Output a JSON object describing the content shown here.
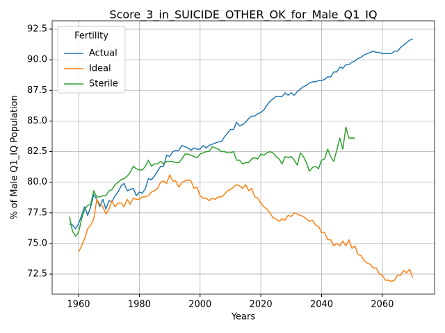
{
  "chart_data": {
    "type": "line",
    "title": "Score_3_in_SUICIDE_OTHER_OK_for_Male_Q1_IQ",
    "x_label": "Years",
    "y_label": "% of Male Q1_IQ Population",
    "x": [
      1957,
      1958,
      1959,
      1960,
      1961,
      1962,
      1963,
      1964,
      1965,
      1966,
      1967,
      1968,
      1969,
      1970,
      1971,
      1972,
      1973,
      1974,
      1975,
      1976,
      1977,
      1978,
      1979,
      1980,
      1981,
      1982,
      1983,
      1984,
      1985,
      1986,
      1987,
      1988,
      1989,
      1990,
      1991,
      1992,
      1993,
      1994,
      1995,
      1996,
      1997,
      1998,
      1999,
      2000,
      2001,
      2002,
      2003,
      2004,
      2005,
      2006,
      2007,
      2008,
      2009,
      2010,
      2011,
      2012,
      2013,
      2014,
      2015,
      2016,
      2017,
      2018,
      2019,
      2020,
      2021,
      2022,
      2023,
      2024,
      2025,
      2026,
      2027,
      2028,
      2029,
      2030,
      2031,
      2032,
      2033,
      2034,
      2035,
      2036,
      2037,
      2038,
      2039,
      2040,
      2041,
      2042,
      2043,
      2044,
      2045,
      2046,
      2047,
      2048,
      2049,
      2050,
      2051,
      2052,
      2053,
      2054,
      2055,
      2056,
      2057,
      2058,
      2059,
      2060,
      2061,
      2062,
      2063,
      2064,
      2065,
      2066,
      2067,
      2068,
      2069,
      2070
    ],
    "series": [
      {
        "name": "Actual",
        "color": "#1f77b4",
        "values": [
          76.6,
          76.5,
          76.2,
          76.6,
          77.3,
          78.0,
          77.3,
          78.0,
          79.0,
          78.6,
          78.0,
          78.6,
          77.8,
          78.5,
          78.4,
          78.9,
          79.2,
          79.7,
          79.9,
          79.3,
          79.4,
          79.5,
          78.9,
          79.2,
          79.1,
          79.5,
          80.3,
          80.2,
          80.5,
          80.9,
          81.3,
          81.3,
          82.2,
          82.1,
          82.5,
          82.6,
          82.6,
          83.0,
          82.9,
          82.8,
          82.6,
          82.8,
          82.7,
          82.7,
          83.0,
          82.8,
          83.0,
          83.1,
          83.2,
          83.3,
          83.3,
          83.7,
          84.0,
          84.3,
          84.3,
          84.9,
          84.6,
          84.7,
          84.9,
          85.2,
          85.4,
          85.4,
          85.6,
          85.7,
          85.9,
          86.3,
          86.6,
          86.8,
          87.0,
          87.0,
          87.0,
          87.3,
          87.1,
          87.3,
          87.1,
          87.4,
          87.6,
          87.8,
          87.9,
          88.1,
          88.2,
          88.2,
          88.3,
          88.3,
          88.4,
          88.6,
          88.6,
          89.0,
          89.0,
          89.4,
          89.3,
          89.6,
          89.6,
          89.8,
          89.9,
          90.1,
          90.2,
          90.4,
          90.5,
          90.6,
          90.7,
          90.6,
          90.6,
          90.5,
          90.5,
          90.5,
          90.5,
          90.7,
          90.7,
          91.0,
          91.2,
          91.4,
          91.6,
          91.7
        ]
      },
      {
        "name": "Ideal",
        "color": "#ff7f0e",
        "values": [
          null,
          null,
          null,
          74.3,
          74.8,
          75.4,
          76.2,
          76.5,
          77.0,
          78.6,
          78.2,
          78.0,
          77.4,
          77.8,
          78.5,
          78.0,
          78.3,
          78.3,
          78.0,
          78.6,
          78.2,
          78.7,
          78.6,
          78.6,
          78.8,
          78.8,
          78.9,
          79.2,
          79.3,
          79.5,
          80.0,
          80.1,
          79.9,
          80.6,
          80.1,
          80.1,
          79.6,
          80.0,
          80.1,
          80.2,
          80.1,
          79.5,
          79.6,
          78.9,
          78.7,
          78.7,
          78.5,
          78.7,
          78.6,
          78.8,
          78.8,
          79.0,
          79.3,
          79.4,
          79.6,
          79.8,
          79.7,
          79.5,
          79.8,
          79.3,
          79.5,
          78.8,
          78.7,
          78.3,
          78.0,
          77.8,
          77.5,
          77.1,
          77.0,
          76.8,
          77.0,
          76.9,
          77.3,
          77.2,
          77.5,
          77.4,
          77.3,
          77.2,
          77.0,
          76.8,
          76.9,
          76.5,
          76.4,
          75.9,
          75.9,
          75.3,
          75.3,
          74.8,
          75.0,
          74.8,
          75.2,
          74.8,
          75.3,
          74.6,
          74.8,
          74.1,
          74.0,
          73.6,
          73.4,
          73.3,
          73.0,
          73.0,
          72.5,
          72.4,
          72.0,
          72.0,
          71.9,
          72.0,
          72.4,
          72.4,
          72.8,
          72.6,
          72.9,
          72.2
        ]
      },
      {
        "name": "Sterile",
        "color": "#2ca02c",
        "values": [
          77.2,
          76.0,
          75.6,
          75.9,
          77.0,
          77.8,
          78.1,
          78.2,
          79.3,
          78.8,
          78.8,
          78.9,
          78.9,
          79.3,
          79.4,
          79.8,
          80.0,
          80.2,
          80.3,
          80.5,
          80.8,
          81.3,
          81.1,
          81.0,
          81.0,
          81.3,
          81.8,
          81.3,
          81.5,
          81.5,
          81.7,
          81.5,
          81.7,
          81.7,
          81.7,
          81.6,
          81.6,
          81.9,
          82.3,
          82.3,
          82.2,
          82.1,
          82.0,
          82.3,
          82.4,
          82.5,
          82.5,
          82.9,
          82.8,
          82.7,
          82.5,
          82.5,
          82.4,
          82.4,
          82.5,
          81.8,
          81.8,
          81.5,
          81.6,
          81.6,
          81.9,
          82.0,
          81.9,
          82.3,
          82.2,
          82.4,
          82.5,
          82.4,
          82.1,
          81.9,
          81.5,
          82.1,
          82.0,
          82.1,
          81.8,
          81.4,
          82.4,
          82.1,
          81.6,
          80.9,
          81.2,
          81.3,
          81.1,
          81.8,
          81.9,
          82.7,
          82.1,
          81.7,
          82.6,
          83.6,
          82.7,
          84.5,
          83.6,
          83.6,
          83.6,
          null,
          null,
          null,
          null,
          null,
          null,
          null,
          null,
          null,
          null,
          null,
          null,
          null,
          null,
          null,
          null,
          null,
          null,
          null
        ]
      }
    ],
    "xlim": [
      1951.3,
      2077.2
    ],
    "xticks": [
      1960,
      1980,
      2000,
      2020,
      2040,
      2060
    ],
    "ylim": [
      70.86,
      93.18
    ],
    "yticks": [
      72.5,
      {
        "value": 75,
        "label": "75.0"
      },
      77.5,
      {
        "value": 80,
        "label": "80.0"
      },
      82.5,
      {
        "value": 85,
        "label": "85.0"
      },
      87.5,
      {
        "value": 90,
        "label": "90.0"
      },
      92.5
    ],
    "grid": true,
    "legend": {
      "title": "Fertility",
      "loc": "upper left"
    }
  }
}
